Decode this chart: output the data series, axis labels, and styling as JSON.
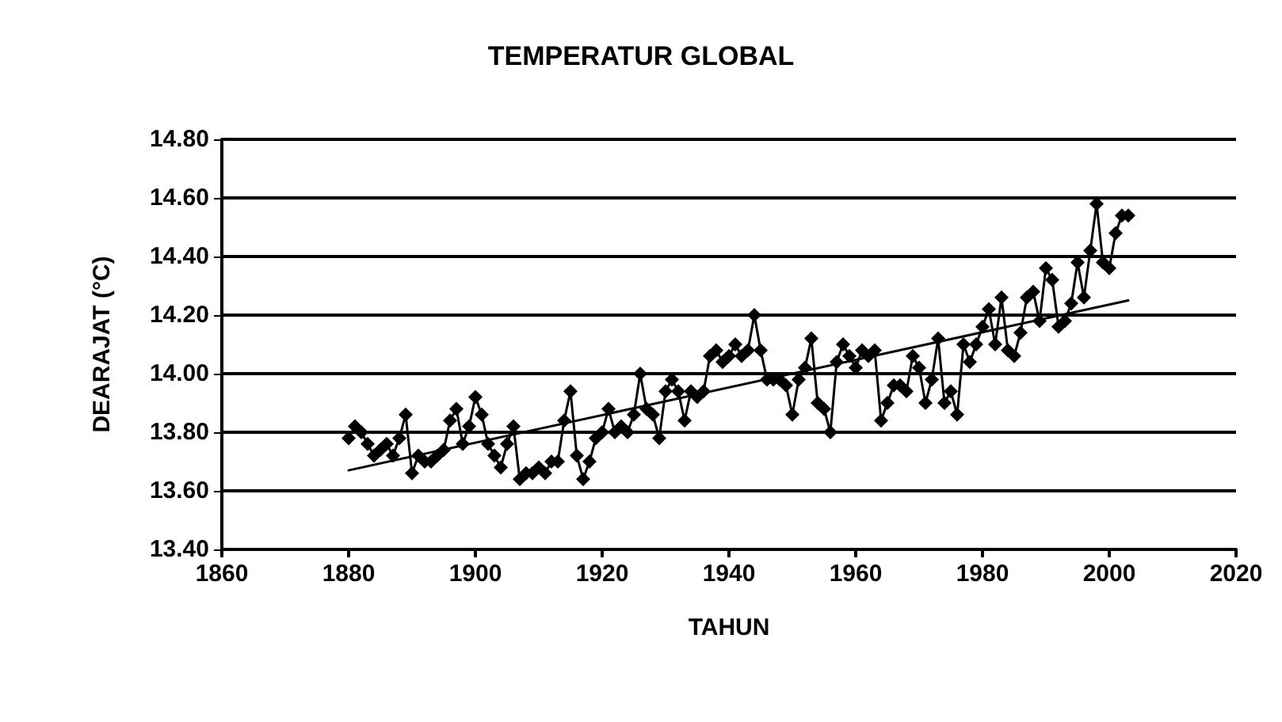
{
  "chart_data": {
    "type": "line",
    "title": "TEMPERATUR GLOBAL",
    "xlabel": "TAHUN",
    "ylabel": "DEARAJAT (°C)",
    "xlim": [
      1860,
      2020
    ],
    "xticks": [
      1860,
      1880,
      1900,
      1920,
      1940,
      1960,
      1980,
      2000,
      2020
    ],
    "ylim": [
      13.4,
      14.8
    ],
    "yticks": [
      {
        "value": 13.4,
        "label": "13.40"
      },
      {
        "value": 13.6,
        "label": "13.60"
      },
      {
        "value": 13.8,
        "label": "13.80"
      },
      {
        "value": 14.0,
        "label": "14.00"
      },
      {
        "value": 14.2,
        "label": "14.20"
      },
      {
        "value": 14.4,
        "label": "14.40"
      },
      {
        "value": 14.6,
        "label": "14.60"
      },
      {
        "value": 14.8,
        "label": "14.80"
      }
    ],
    "grid": "y",
    "marker": "diamond",
    "line_style": "solid",
    "series": [
      {
        "color": "#000000",
        "x": [
          1880,
          1881,
          1882,
          1883,
          1884,
          1885,
          1886,
          1887,
          1888,
          1889,
          1890,
          1891,
          1892,
          1893,
          1894,
          1895,
          1896,
          1897,
          1898,
          1899,
          1900,
          1901,
          1902,
          1903,
          1904,
          1905,
          1906,
          1907,
          1908,
          1909,
          1910,
          1911,
          1912,
          1913,
          1914,
          1915,
          1916,
          1917,
          1918,
          1919,
          1920,
          1921,
          1922,
          1923,
          1924,
          1925,
          1926,
          1927,
          1928,
          1929,
          1930,
          1931,
          1932,
          1933,
          1934,
          1935,
          1936,
          1937,
          1938,
          1939,
          1940,
          1941,
          1942,
          1943,
          1944,
          1945,
          1946,
          1947,
          1948,
          1949,
          1950,
          1951,
          1952,
          1953,
          1954,
          1955,
          1956,
          1957,
          1958,
          1959,
          1960,
          1961,
          1962,
          1963,
          1964,
          1965,
          1966,
          1967,
          1968,
          1969,
          1970,
          1971,
          1972,
          1973,
          1974,
          1975,
          1976,
          1977,
          1978,
          1979,
          1980,
          1981,
          1982,
          1983,
          1984,
          1985,
          1986,
          1987,
          1988,
          1989,
          1990,
          1991,
          1992,
          1993,
          1994,
          1995,
          1996,
          1997,
          1998,
          1999,
          2000,
          2001,
          2002,
          2003
        ],
        "values": [
          13.78,
          13.82,
          13.8,
          13.76,
          13.72,
          13.74,
          13.76,
          13.72,
          13.78,
          13.86,
          13.66,
          13.72,
          13.7,
          13.7,
          13.72,
          13.74,
          13.84,
          13.88,
          13.76,
          13.82,
          13.92,
          13.86,
          13.76,
          13.72,
          13.68,
          13.76,
          13.82,
          13.64,
          13.66,
          13.66,
          13.68,
          13.66,
          13.7,
          13.7,
          13.84,
          13.94,
          13.72,
          13.64,
          13.7,
          13.78,
          13.8,
          13.88,
          13.8,
          13.82,
          13.8,
          13.86,
          14.0,
          13.88,
          13.86,
          13.78,
          13.94,
          13.98,
          13.94,
          13.84,
          13.94,
          13.92,
          13.94,
          14.06,
          14.08,
          14.04,
          14.06,
          14.1,
          14.06,
          14.08,
          14.2,
          14.08,
          13.98,
          13.98,
          13.98,
          13.96,
          13.86,
          13.98,
          14.02,
          14.12,
          13.9,
          13.88,
          13.8,
          14.04,
          14.1,
          14.06,
          14.02,
          14.08,
          14.06,
          14.08,
          13.84,
          13.9,
          13.96,
          13.96,
          13.94,
          14.06,
          14.02,
          13.9,
          13.98,
          14.12,
          13.9,
          13.94,
          13.86,
          14.1,
          14.04,
          14.1,
          14.16,
          14.22,
          14.1,
          14.26,
          14.08,
          14.06,
          14.14,
          14.26,
          14.28,
          14.18,
          14.36,
          14.32,
          14.16,
          14.18,
          14.24,
          14.38,
          14.26,
          14.42,
          14.58,
          14.38,
          14.36,
          14.48,
          14.54,
          14.54
        ]
      },
      {
        "type": "line",
        "marker": "none",
        "color": "#000000",
        "x": [
          1880,
          2003
        ],
        "values": [
          13.67,
          14.25
        ]
      }
    ]
  }
}
